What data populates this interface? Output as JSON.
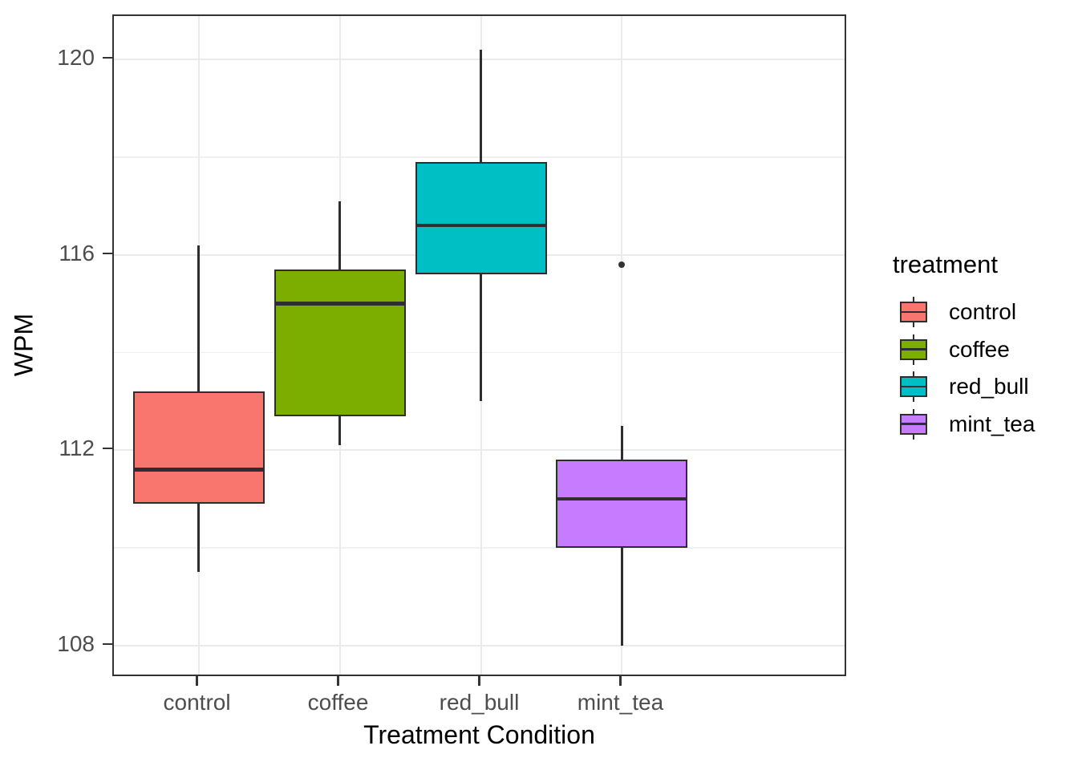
{
  "axes": {
    "x": {
      "title": "Treatment Condition",
      "categories": [
        "control",
        "coffee",
        "red_bull",
        "mint_tea"
      ]
    },
    "y": {
      "title": "WPM",
      "major_ticks": [
        108,
        112,
        116,
        120
      ],
      "minor_ticks": [
        110,
        114,
        118
      ]
    }
  },
  "legend": {
    "title": "treatment",
    "items": [
      {
        "label": "control",
        "color": "#F8766D"
      },
      {
        "label": "coffee",
        "color": "#7CAE00"
      },
      {
        "label": "red_bull",
        "color": "#00BFC4"
      },
      {
        "label": "mint_tea",
        "color": "#C77CFF"
      }
    ]
  },
  "colors": {
    "panel_border": "#333333",
    "grid_major": "#EBEBEB",
    "grid_minor": "#F0F0F0",
    "box_stroke": "#2E2E2E",
    "tick_text": "#4D4D4D",
    "title_text": "#000000",
    "background": "#FFFFFF"
  },
  "chart_data": {
    "type": "boxplot",
    "title": "",
    "xlabel": "Treatment Condition",
    "ylabel": "WPM",
    "ylim": [
      107.34,
      120.89
    ],
    "grid": true,
    "legend_position": "right",
    "categories": [
      "control",
      "coffee",
      "red_bull",
      "mint_tea"
    ],
    "series": [
      {
        "name": "control",
        "color": "#F8766D",
        "whisker_low": 109.5,
        "q1": 110.9,
        "median": 111.6,
        "q3": 113.2,
        "whisker_high": 116.2,
        "outliers": []
      },
      {
        "name": "coffee",
        "color": "#7CAE00",
        "whisker_low": 112.1,
        "q1": 112.7,
        "median": 115.0,
        "q3": 115.7,
        "whisker_high": 117.1,
        "outliers": []
      },
      {
        "name": "red_bull",
        "color": "#00BFC4",
        "whisker_low": 113.0,
        "q1": 115.6,
        "median": 116.6,
        "q3": 117.9,
        "whisker_high": 120.2,
        "outliers": []
      },
      {
        "name": "mint_tea",
        "color": "#C77CFF",
        "whisker_low": 108.0,
        "q1": 110.0,
        "median": 111.0,
        "q3": 111.8,
        "whisker_high": 112.5,
        "outliers": [
          115.8
        ]
      }
    ]
  }
}
